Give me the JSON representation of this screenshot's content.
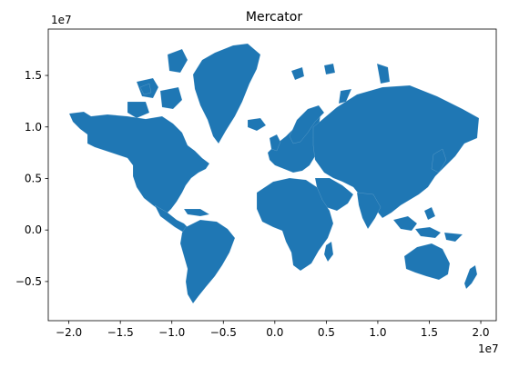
{
  "chart_data": {
    "type": "map",
    "title": "Mercator",
    "projection": "Mercator",
    "fill_color": "#1f77b4",
    "x_ticks": [
      {
        "value": -20000000,
        "label": "−2.0"
      },
      {
        "value": -15000000,
        "label": "−1.5"
      },
      {
        "value": -10000000,
        "label": "−1.0"
      },
      {
        "value": -5000000,
        "label": "−0.5"
      },
      {
        "value": 0,
        "label": "0.0"
      },
      {
        "value": 5000000,
        "label": "0.5"
      },
      {
        "value": 10000000,
        "label": "1.0"
      },
      {
        "value": 15000000,
        "label": "1.5"
      },
      {
        "value": 20000000,
        "label": "2.0"
      }
    ],
    "y_ticks": [
      {
        "value": -5000000,
        "label": "−0.5"
      },
      {
        "value": 0,
        "label": "0.0"
      },
      {
        "value": 5000000,
        "label": "0.5"
      },
      {
        "value": 10000000,
        "label": "1.0"
      },
      {
        "value": 15000000,
        "label": "1.5"
      }
    ],
    "x_offset_label": "1e7",
    "y_offset_label": "1e7",
    "xlim": [
      -22000000,
      21500000
    ],
    "ylim": [
      -8800000,
      19500000
    ],
    "grid": false,
    "legend": false
  }
}
